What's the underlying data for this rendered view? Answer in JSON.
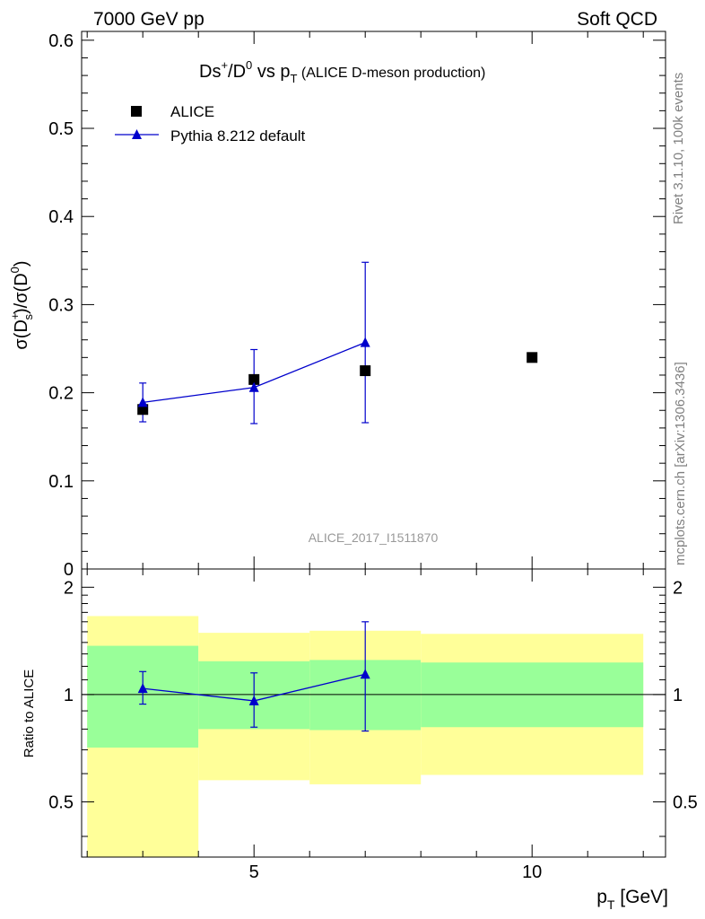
{
  "header": {
    "left": "7000 GeV pp",
    "right": "Soft QCD"
  },
  "side_labels": {
    "rivet": "Rivet 3.1.10,  100k events",
    "mcplots": "mcplots.cern.ch [arXiv:1306.3436]"
  },
  "chart_data": {
    "type": "scatter",
    "title": {
      "part1": "Ds",
      "part1_sup": "+",
      "part2": "/D",
      "part2_sup": "0",
      "part3": " vs p",
      "part3_sub": "T",
      "part4": " (ALICE D-meson production)"
    },
    "analysis_id": "ALICE_2017_I1511870",
    "xlabel": {
      "main": "p",
      "sub": "T",
      "rest": " [GeV]"
    },
    "ylabel_main": {
      "t1": "σ(D",
      "sup1": "+",
      "sub1": "s",
      "t2": ")/σ(D",
      "sup2": "0",
      "t3": ")"
    },
    "ylabel_ratio": "Ratio to ALICE",
    "xlim": [
      1.9,
      12.4
    ],
    "ylim": [
      0,
      0.61
    ],
    "ratio_ylim": [
      0.35,
      2.25
    ],
    "ratio_scale": "log",
    "x_ticks": [
      5,
      10
    ],
    "x_tick_labels": [
      "5",
      "10"
    ],
    "y_ticks": [
      0,
      0.1,
      0.2,
      0.3,
      0.4,
      0.5,
      0.6
    ],
    "y_tick_labels": [
      "0",
      "0.1",
      "0.2",
      "0.3",
      "0.4",
      "0.5",
      "0.6"
    ],
    "ratio_ticks": [
      0.5,
      1,
      2
    ],
    "ratio_tick_labels": [
      "0.5",
      "1",
      "2"
    ],
    "legend_position": "top-left",
    "series": [
      {
        "name": "ALICE",
        "marker": "square",
        "color": "#000000",
        "x": [
          3,
          5,
          7,
          10
        ],
        "y": [
          0.181,
          0.215,
          0.225,
          0.24
        ]
      },
      {
        "name": "Pythia 8.212 default",
        "marker": "triangle",
        "color": "#0000cc",
        "x": [
          3,
          5,
          7
        ],
        "y": [
          0.189,
          0.206,
          0.257
        ],
        "yerr_low": [
          0.022,
          0.041,
          0.091
        ],
        "yerr_high": [
          0.022,
          0.043,
          0.091
        ]
      }
    ],
    "ratio": {
      "x": [
        3,
        5,
        7
      ],
      "y": [
        1.04,
        0.96,
        1.14
      ],
      "yerr_low": [
        0.1,
        0.15,
        0.35
      ],
      "yerr_high": [
        0.12,
        0.19,
        0.46
      ]
    },
    "bands": [
      {
        "xlo": 2,
        "xhi": 4,
        "inner_lo": 0.71,
        "inner_hi": 1.37,
        "outer_lo": 0.35,
        "outer_hi": 1.66
      },
      {
        "xlo": 4,
        "xhi": 6,
        "inner_lo": 0.8,
        "inner_hi": 1.24,
        "outer_lo": 0.575,
        "outer_hi": 1.49
      },
      {
        "xlo": 6,
        "xhi": 8,
        "inner_lo": 0.795,
        "inner_hi": 1.25,
        "outer_lo": 0.56,
        "outer_hi": 1.51
      },
      {
        "xlo": 8,
        "xhi": 12,
        "inner_lo": 0.81,
        "inner_hi": 1.23,
        "outer_lo": 0.595,
        "outer_hi": 1.48
      }
    ],
    "colors": {
      "band_inner": "#99ff99",
      "band_outer": "#ffff99",
      "data": "#000000",
      "mc": "#0000cc",
      "side_text": "#808080"
    }
  }
}
